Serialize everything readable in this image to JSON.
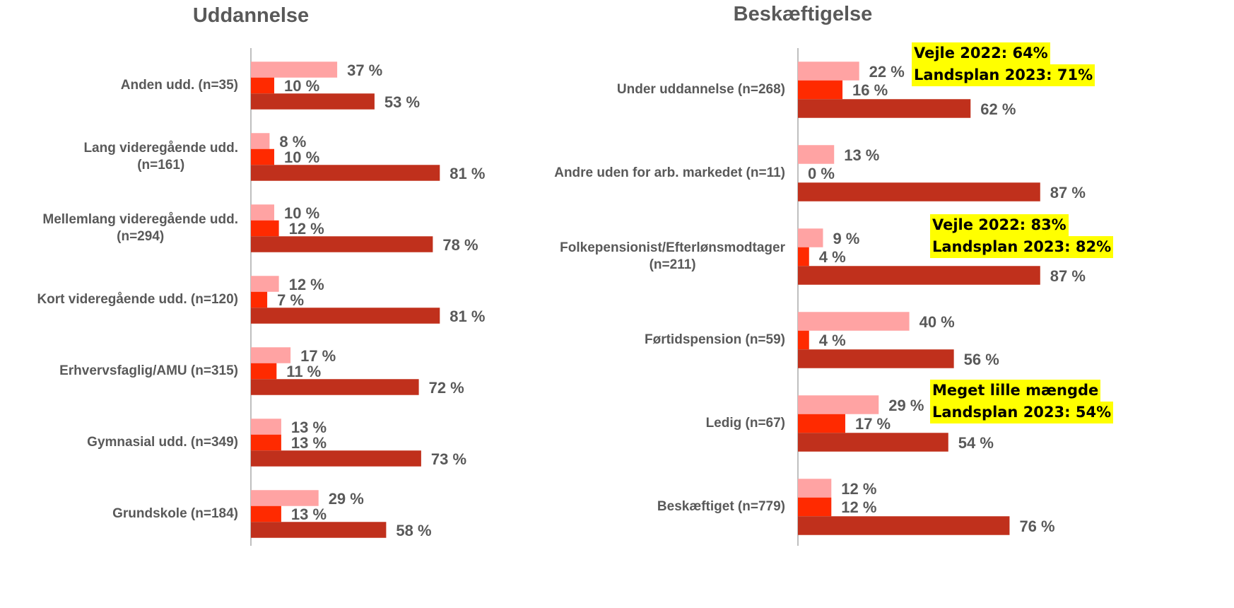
{
  "chart_data": [
    {
      "type": "bar",
      "orientation": "horizontal",
      "title": "Uddannelse",
      "categories": [
        "Anden udd. (n=35)",
        "Lang videregående udd.\n(n=161)",
        "Mellemlang videregående udd.\n(n=294)",
        "Kort videregående udd. (n=120)",
        "Erhvervsfaglig/AMU (n=315)",
        "Gymnasial udd. (n=349)",
        "Grundskole (n=184)"
      ],
      "xlim": [
        0,
        100
      ],
      "series": [
        {
          "color": "#ffa3a3",
          "values": [
            37,
            8,
            10,
            12,
            17,
            13,
            29
          ],
          "value_labels": [
            "37 %",
            "8 %",
            "10 %",
            "12 %",
            "17 %",
            "13 %",
            "29 %"
          ]
        },
        {
          "color": "#ff2a00",
          "values": [
            10,
            10,
            12,
            7,
            11,
            13,
            13
          ],
          "value_labels": [
            "10 %",
            "10 %",
            "12 %",
            "7 %",
            "11 %",
            "13 %",
            "13 %"
          ]
        },
        {
          "color": "#c0301c",
          "values": [
            53,
            81,
            78,
            81,
            72,
            73,
            58
          ],
          "value_labels": [
            "53 %",
            "81 %",
            "78 %",
            "81 %",
            "72 %",
            "73 %",
            "58 %"
          ]
        }
      ]
    },
    {
      "type": "bar",
      "orientation": "horizontal",
      "title": "Beskæftigelse",
      "categories": [
        "Under uddannelse (n=268)",
        "Andre uden for arb. markedet (n=11)",
        "Folkepensionist/Efterlønsmodtager\n(n=211)",
        "Førtidspension (n=59)",
        "Ledig (n=67)",
        "Beskæftiget (n=779)"
      ],
      "xlim": [
        0,
        100
      ],
      "series": [
        {
          "color": "#ffa3a3",
          "values": [
            22,
            13,
            9,
            40,
            29,
            12
          ],
          "value_labels": [
            "22 %",
            "13 %",
            "9 %",
            "40 %",
            "29 %",
            "12 %"
          ]
        },
        {
          "color": "#ff2a00",
          "values": [
            16,
            0,
            4,
            4,
            17,
            12
          ],
          "value_labels": [
            "16 %",
            "0 %",
            "4 %",
            "4 %",
            "17 %",
            "12 %"
          ]
        },
        {
          "color": "#c0301c",
          "values": [
            62,
            87,
            87,
            56,
            54,
            76
          ],
          "value_labels": [
            "62 %",
            "87 %",
            "87 %",
            "56 %",
            "54 %",
            "76 %"
          ]
        }
      ],
      "annotations": [
        [
          "Vejle 2022: 64%",
          "Landsplan 2023: 71%"
        ],
        [
          "Vejle 2022: 83%",
          "Landsplan 2023: 82%"
        ],
        [
          "Meget lille mængde",
          "Landsplan 2023: 54%"
        ]
      ]
    }
  ]
}
